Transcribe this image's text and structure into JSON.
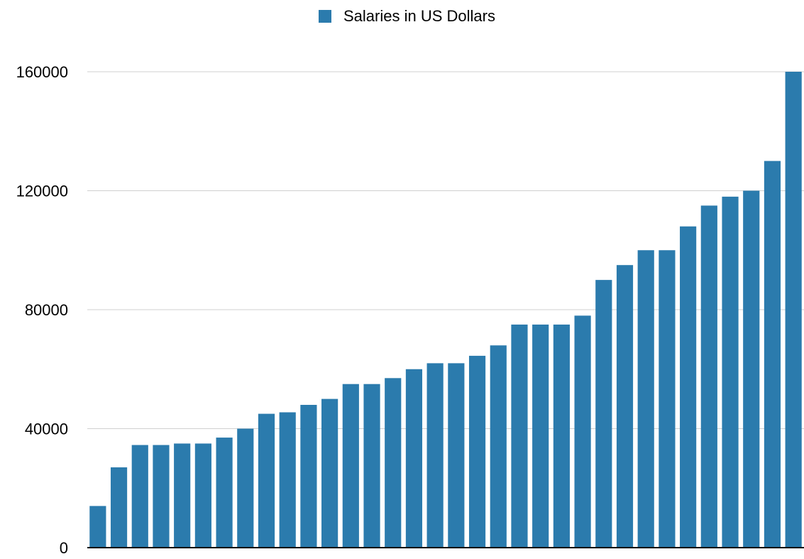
{
  "chart_data": {
    "type": "bar",
    "series": [
      {
        "name": "Salaries in US Dollars",
        "color": "#2b7bad",
        "values": [
          14000,
          27000,
          34500,
          34500,
          35000,
          35000,
          37000,
          40000,
          45000,
          45500,
          48000,
          50000,
          55000,
          55000,
          57000,
          60000,
          62000,
          62000,
          64500,
          68000,
          75000,
          75000,
          75000,
          78000,
          90000,
          95000,
          100000,
          100000,
          108000,
          115000,
          118000,
          120000,
          130000,
          160000
        ]
      }
    ],
    "ylim": [
      0,
      160000
    ],
    "yticks": [
      0,
      40000,
      80000,
      120000,
      160000
    ],
    "grid": true,
    "legend": "top"
  }
}
